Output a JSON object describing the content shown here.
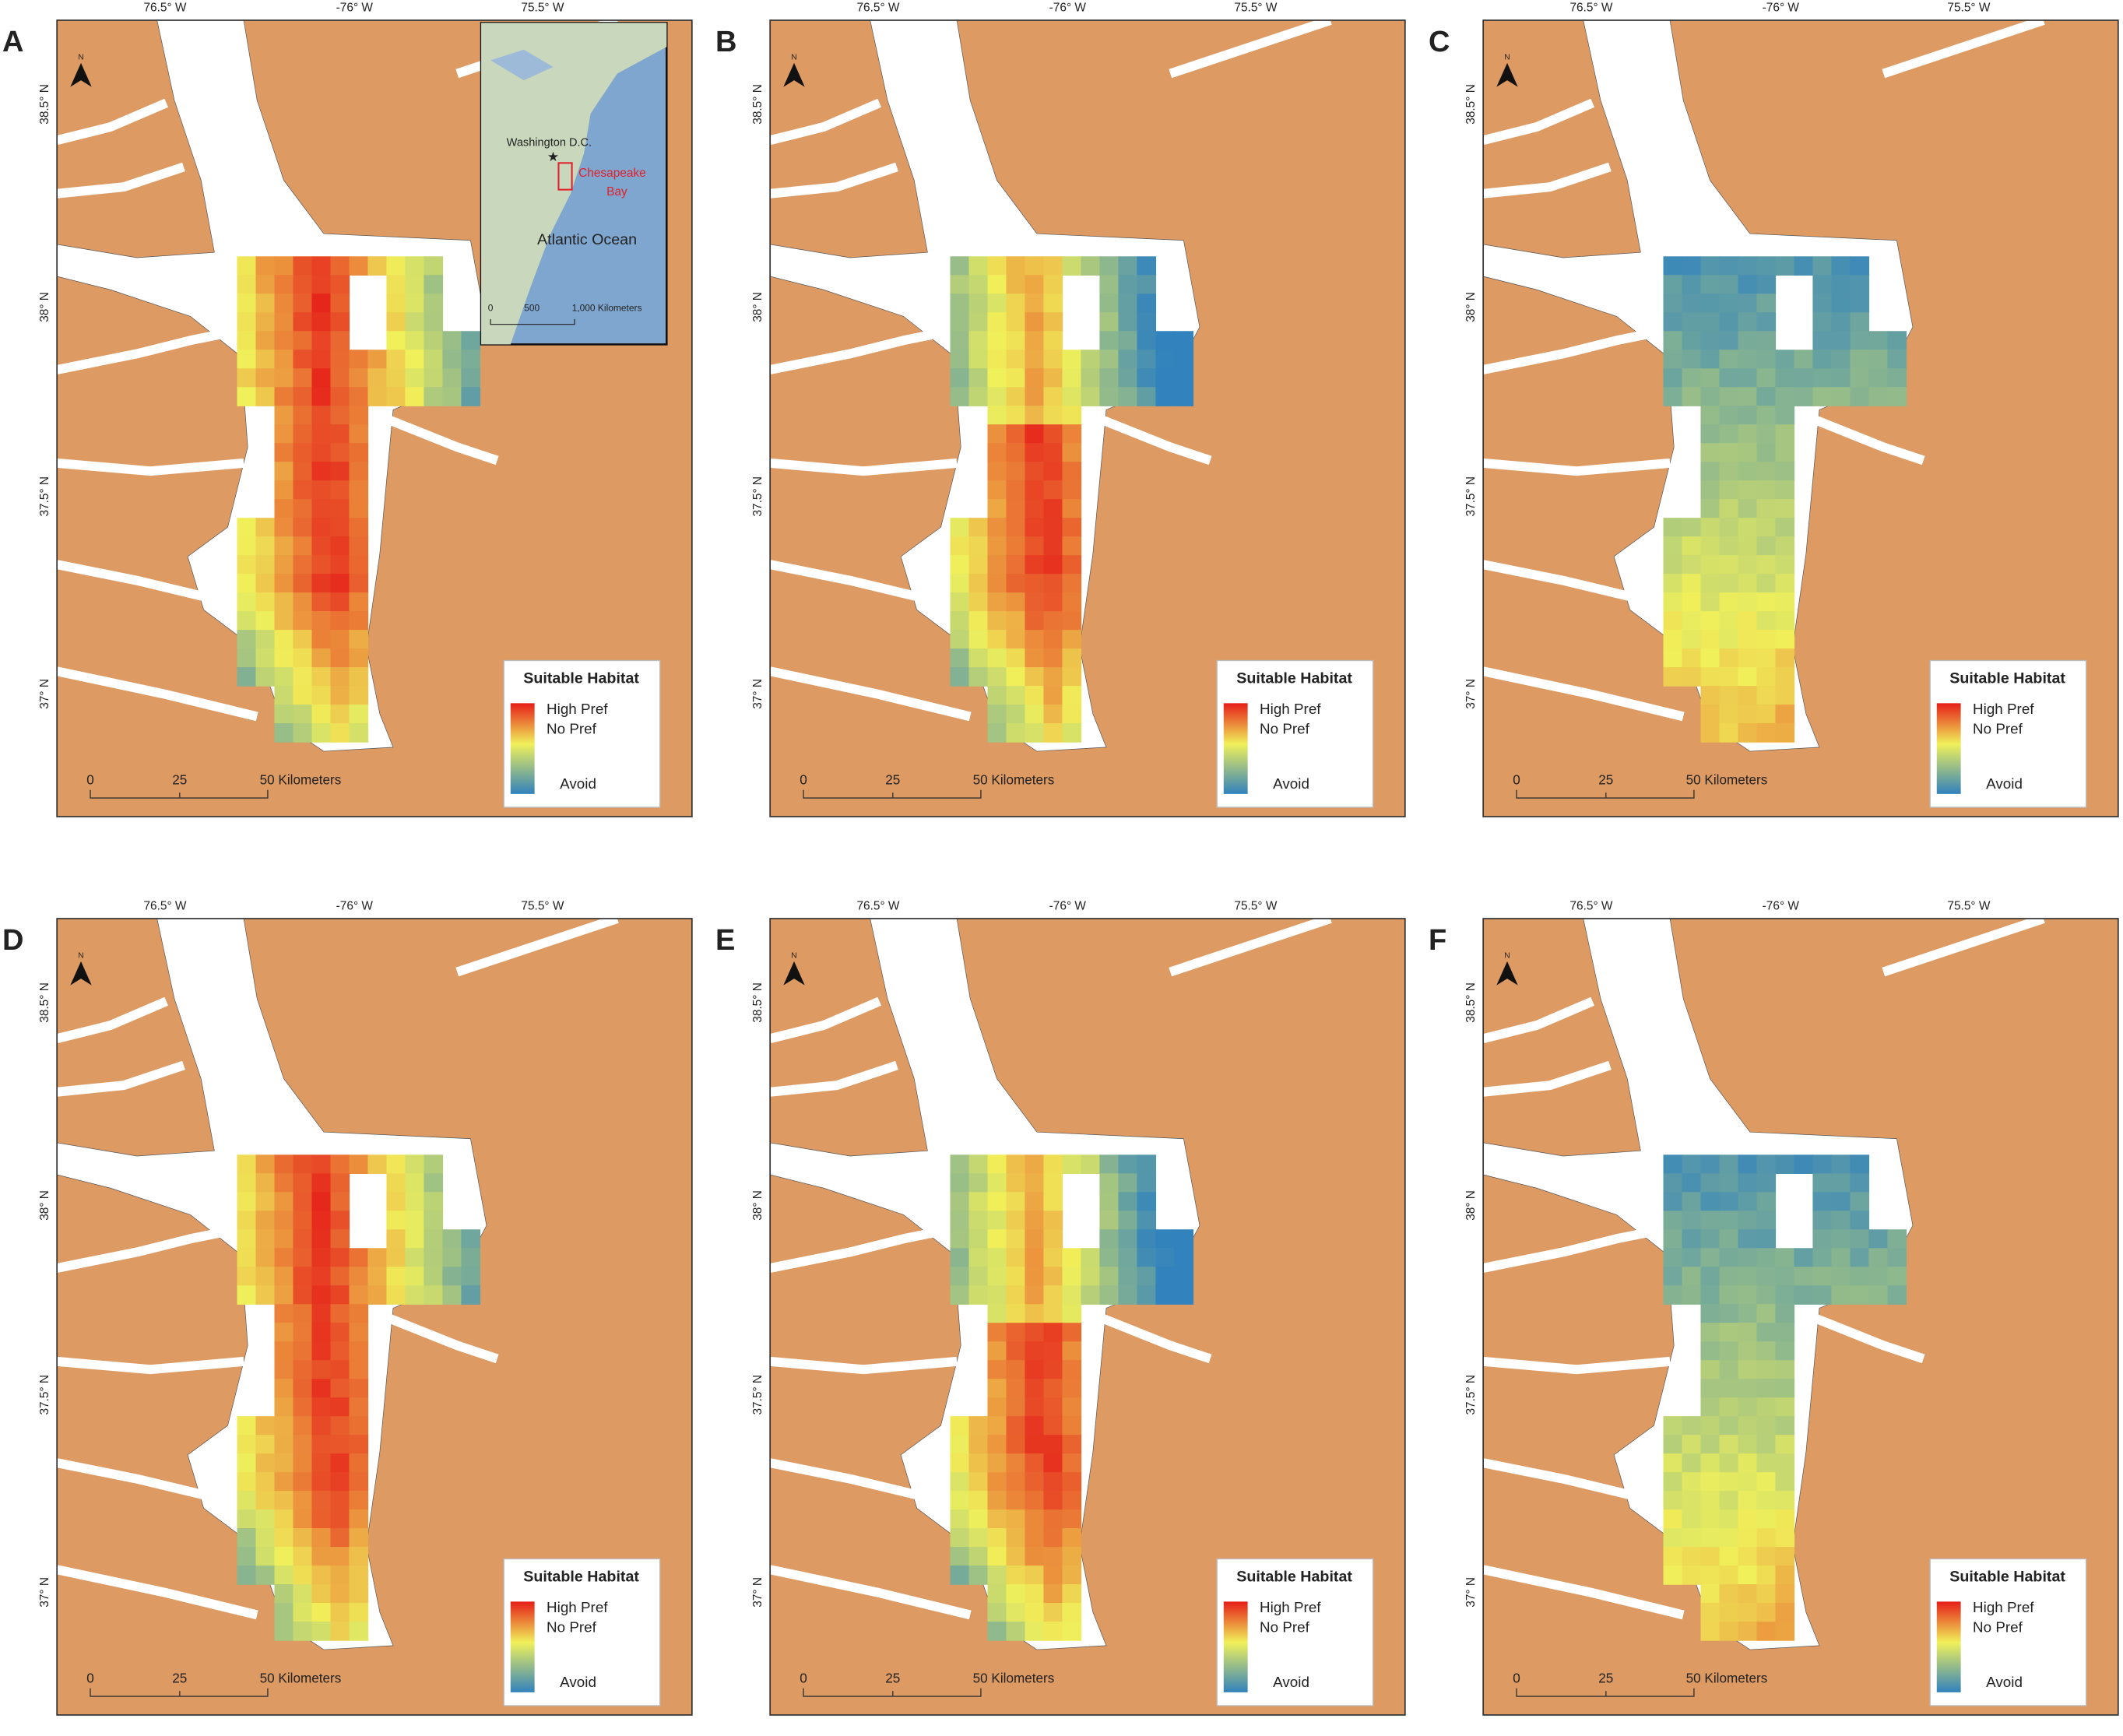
{
  "panels": [
    {
      "label": "A"
    },
    {
      "label": "B"
    },
    {
      "label": "C"
    },
    {
      "label": "D"
    },
    {
      "label": "E"
    },
    {
      "label": "F"
    }
  ],
  "north_label": "N",
  "longitude_labels": [
    "76.5° W",
    "-76° W",
    "75.5° W"
  ],
  "latitude_labels": [
    "38.5° N",
    "38° N",
    "37.5° N",
    "37° N"
  ],
  "legend": {
    "title": "Suitable Habitat",
    "high": "High Pref",
    "neutral": "No Pref",
    "low": "Avoid"
  },
  "scale_bar": {
    "ticks": [
      "0",
      "25"
    ],
    "end": "50 Kilometers"
  },
  "inset": {
    "city": "Washington D.C.",
    "bay": [
      "Chesapeake",
      "Bay"
    ],
    "ocean": "Atlantic Ocean",
    "scale_ticks": [
      "0",
      "500"
    ],
    "scale_end": "1,000 Kilometers"
  }
}
